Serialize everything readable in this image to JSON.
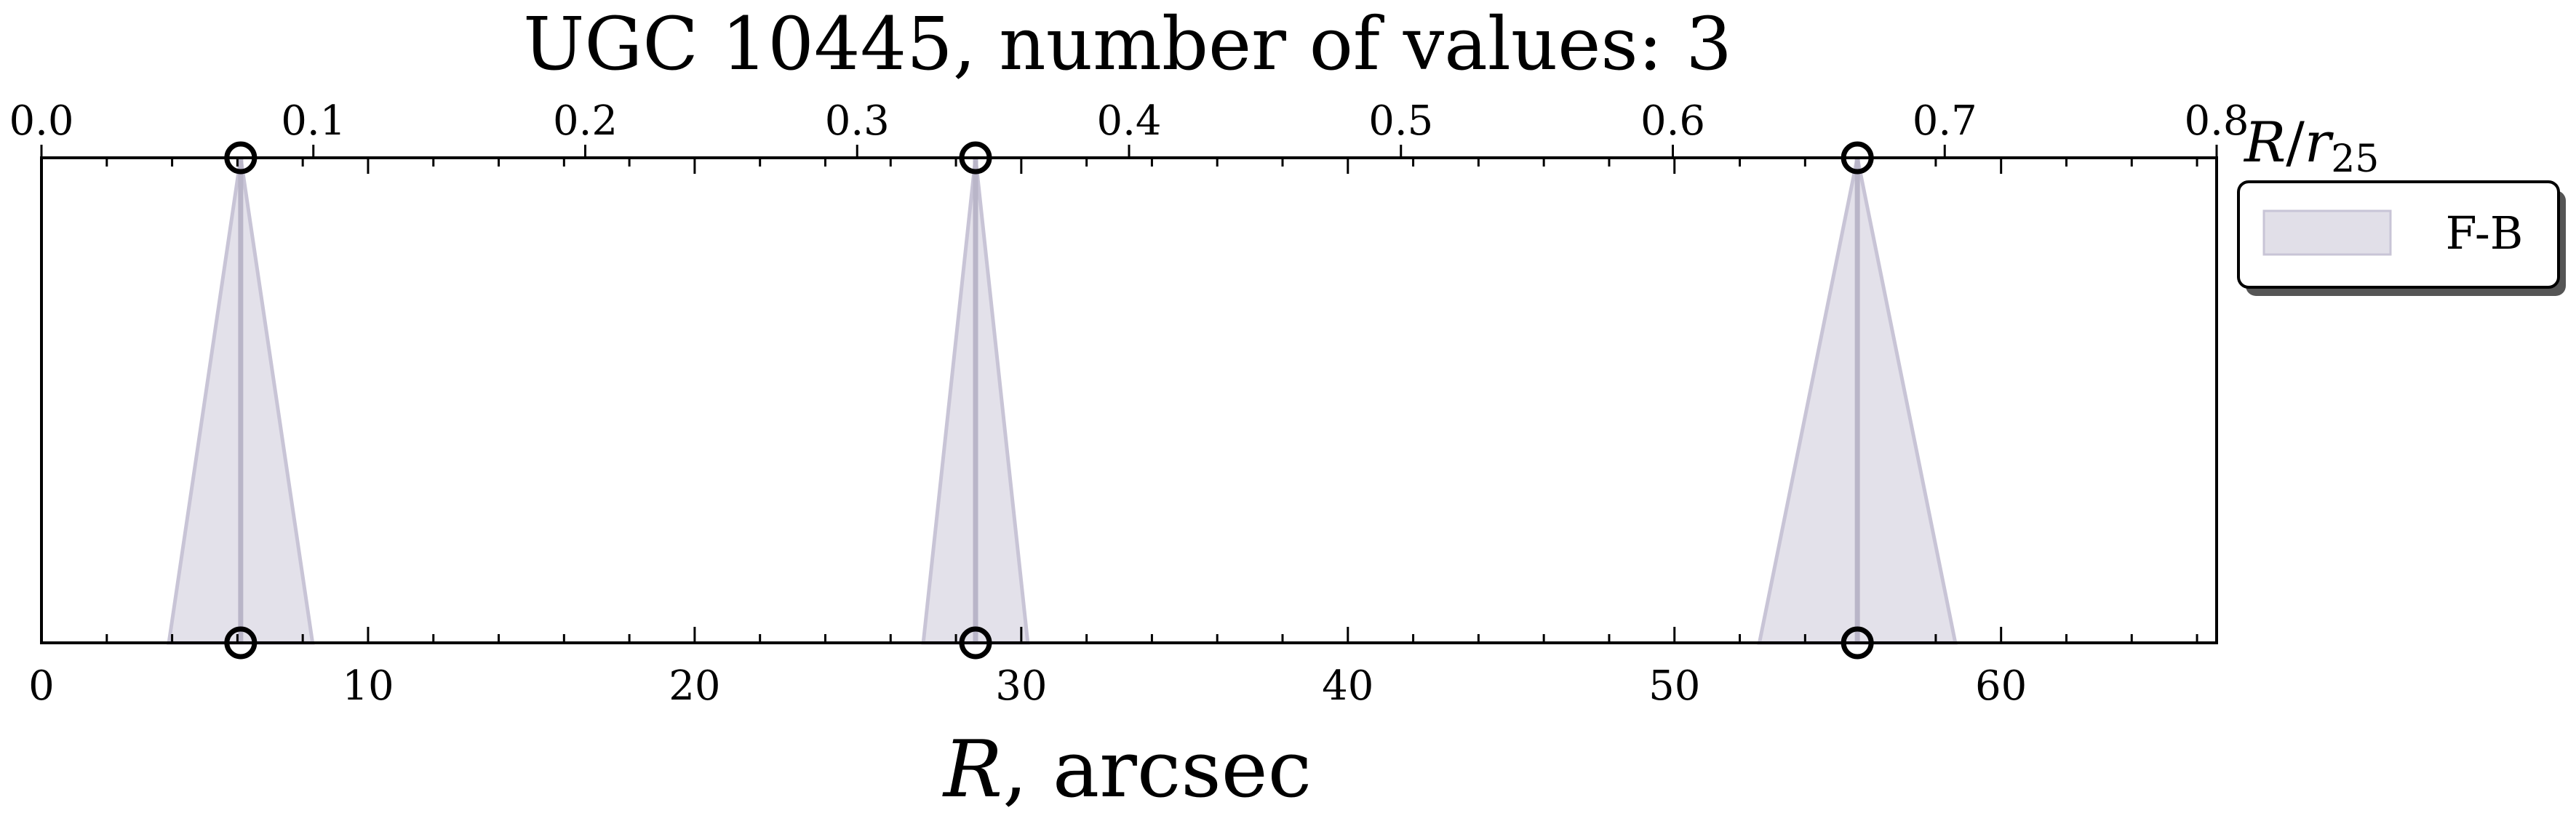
{
  "chart_data": {
    "type": "area",
    "title": "UGC 10445, number of values: 3",
    "xlabel": {
      "symbol": "R",
      "unit": ", arcsec"
    },
    "x2label": {
      "numerator": "R",
      "denominator": "r",
      "subscript": "25"
    },
    "xlim": [
      0,
      66.6
    ],
    "x2lim": [
      0,
      0.8
    ],
    "x_ticks": [
      0,
      10,
      20,
      30,
      40,
      50,
      60
    ],
    "x2_ticks": [
      "0.0",
      "0.1",
      "0.2",
      "0.3",
      "0.4",
      "0.5",
      "0.6",
      "0.7",
      "0.8"
    ],
    "yticks_shown": false,
    "grid": false,
    "legend": {
      "placement": "outside-right-top",
      "entries": [
        "F-B"
      ]
    },
    "series": [
      {
        "name": "F-B",
        "color": "#c8c4d6",
        "points": [
          {
            "x": 6.1,
            "half_width_bottom": 2.2
          },
          {
            "x": 28.6,
            "half_width_bottom": 1.6
          },
          {
            "x": 55.6,
            "half_width_bottom": 3.0
          }
        ]
      }
    ]
  }
}
